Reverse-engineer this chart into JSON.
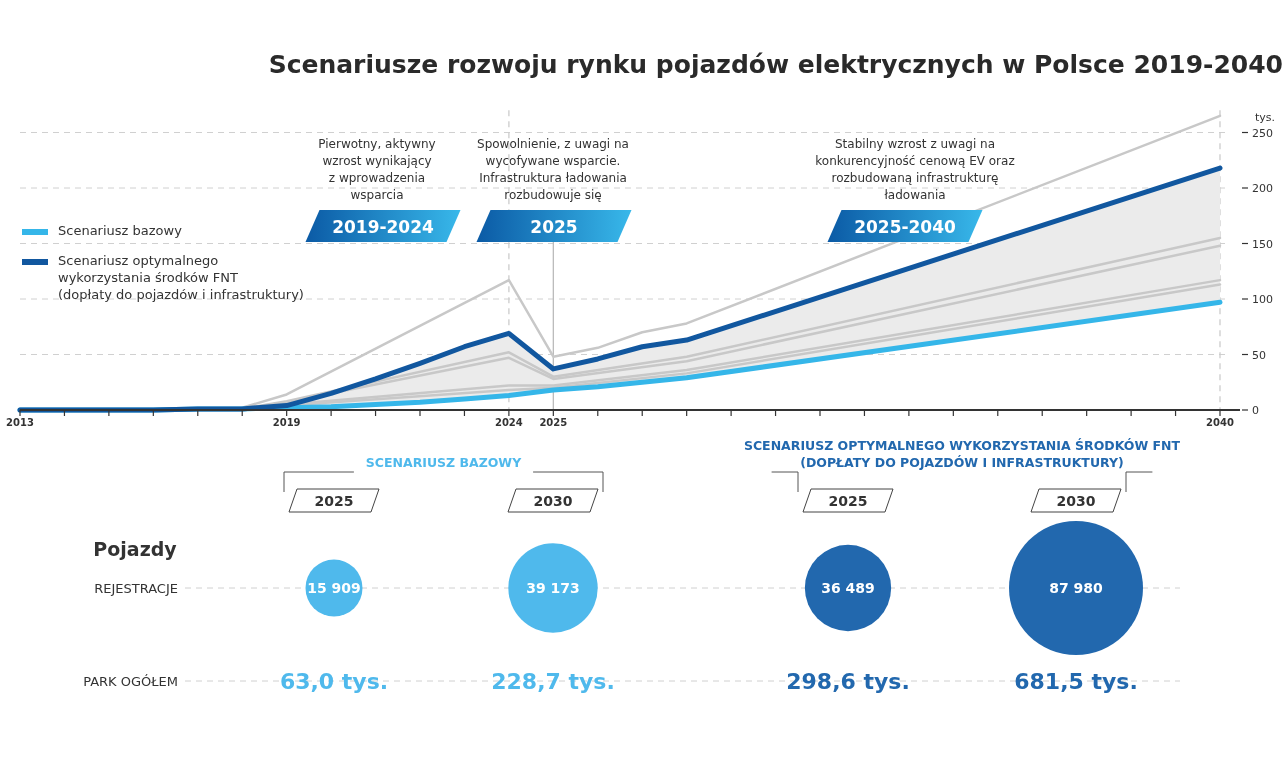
{
  "chart_data": [
    {
      "type": "line",
      "title": "Scenariusze rozwoju rynku pojazdów elektrycznych w Polsce 2019-2040",
      "ylabel": "tys.",
      "x": [
        2013,
        2014,
        2015,
        2016,
        2017,
        2018,
        2019,
        2020,
        2021,
        2022,
        2023,
        2024,
        2025,
        2026,
        2027,
        2028,
        2040
      ],
      "xlim": [
        2013,
        2040
      ],
      "xticks": [
        2013,
        {
          "value": 2014,
          "label": null
        },
        {
          "value": 2015,
          "label": null
        },
        {
          "value": 2016,
          "label": null
        },
        {
          "value": 2017,
          "label": null
        },
        {
          "value": 2018,
          "label": null
        },
        2019,
        {
          "value": 2020,
          "label": null
        },
        {
          "value": 2021,
          "label": null
        },
        {
          "value": 2022,
          "label": null
        },
        {
          "value": 2023,
          "label": null
        },
        2024,
        2025,
        {
          "value": 2026,
          "label": null
        },
        {
          "value": 2027,
          "label": null
        },
        {
          "value": 2028,
          "label": null
        },
        {
          "value": 2029,
          "label": null
        },
        {
          "value": 2030,
          "label": null
        },
        {
          "value": 2031,
          "label": null
        },
        {
          "value": 2032,
          "label": null
        },
        {
          "value": 2033,
          "label": null
        },
        {
          "value": 2034,
          "label": null
        },
        {
          "value": 2035,
          "label": null
        },
        {
          "value": 2036,
          "label": null
        },
        {
          "value": 2037,
          "label": null
        },
        {
          "value": 2038,
          "label": null
        },
        {
          "value": 2039,
          "label": null
        },
        2040
      ],
      "ylim": [
        0,
        270
      ],
      "yticks": [
        0,
        50,
        100,
        150,
        200,
        250
      ],
      "grid": "y",
      "legend": "left",
      "line_style": "solid",
      "series": [
        {
          "color": "#c8c8c8",
          "x": [
            2018,
            2019,
            2024,
            2025,
            2026,
            2027,
            2028,
            2040
          ],
          "values": [
            2,
            14,
            117,
            48,
            56,
            70,
            78,
            265
          ]
        },
        {
          "color": "#c8c8c8",
          "x": [
            2018,
            2019,
            2024,
            2025,
            2028,
            2040
          ],
          "values": [
            1,
            8,
            52,
            30,
            48,
            155
          ]
        },
        {
          "color": "#c8c8c8",
          "x": [
            2018,
            2019,
            2024,
            2025,
            2028,
            2040
          ],
          "values": [
            1,
            7,
            47,
            28,
            44,
            148
          ]
        },
        {
          "color": "#c8c8c8",
          "x": [
            2018,
            2019,
            2024,
            2025,
            2028,
            2040
          ],
          "values": [
            1,
            5,
            22,
            22,
            36,
            117
          ]
        },
        {
          "color": "#c8c8c8",
          "x": [
            2018,
            2019,
            2024,
            2025,
            2028,
            2040
          ],
          "values": [
            1,
            4,
            18,
            20,
            33,
            113
          ]
        },
        {
          "name": "Scenariusz bazowy",
          "color": "#35b6e9",
          "values": [
            0,
            0,
            0,
            0,
            1,
            1,
            2,
            3,
            5,
            7,
            10,
            13,
            18,
            21,
            25,
            29,
            97
          ]
        },
        {
          "name": "Scenariusz optymalnego wykorzystania środków FNT (dopłaty do pojazdów i infrastruktury)",
          "color": "#11579f",
          "values": [
            0,
            0,
            0,
            0,
            1,
            1,
            4,
            15,
            28,
            42,
            57,
            69,
            37,
            46,
            57,
            63,
            218
          ],
          "lower": [
            0,
            0,
            0,
            0,
            1,
            1,
            2,
            3,
            5,
            7,
            10,
            13,
            18,
            21,
            25,
            29,
            97
          ],
          "upper": [
            0,
            0,
            0,
            0,
            1,
            1,
            4,
            15,
            28,
            42,
            57,
            69,
            37,
            46,
            57,
            63,
            218
          ]
        }
      ],
      "ref_lines": [
        {
          "axis": "x",
          "value": 2024,
          "line_style": "dashed",
          "color": "#cccccc"
        },
        {
          "axis": "x",
          "value": 2025,
          "line_style": "solid",
          "color": "#bbbbbb"
        },
        {
          "axis": "x",
          "value": 2040,
          "line_style": "dashed",
          "color": "#cccccc"
        }
      ],
      "annotations": [
        "Pierwotny, aktywny wzrost wynikający z wprowadzenia wsparcia",
        "Spowolnienie, z uwagi na wycofywane wsparcie. Infrastruktura ładowania rozbudowuje się",
        "Stabilny wzrost z uwagi na konkurencyjność cenową EV oraz rozbudowaną infrastrukturę ładowania",
        "2019-2024",
        "2025",
        "2025-2040"
      ]
    },
    {
      "type": "other",
      "categories": [
        "2025",
        "2030"
      ],
      "series": [
        {
          "name": "SCENARIUSZ BAZOWY",
          "color": "#4fb9ec",
          "values": [
            15909,
            39173
          ],
          "value_labels": [
            "15 909",
            "39 173"
          ]
        },
        {
          "name": "SCENARIUSZ OPTYMALNEGO WYKORZYSTANIA ŚRODKÓW FNT (DOPŁATY DO POJAZDÓW I INFRASTRUKTURY)",
          "color": "#2268ae",
          "values": [
            36489,
            87980
          ],
          "value_labels": [
            "36 489",
            "87 980"
          ]
        }
      ],
      "annotations": [
        "Pojazdy",
        "REJESTRACJE",
        "PARK OGÓŁEM",
        "63,0 tys.",
        "228,7 tys.",
        "298,6 tys.",
        "681,5 tys."
      ]
    }
  ]
}
